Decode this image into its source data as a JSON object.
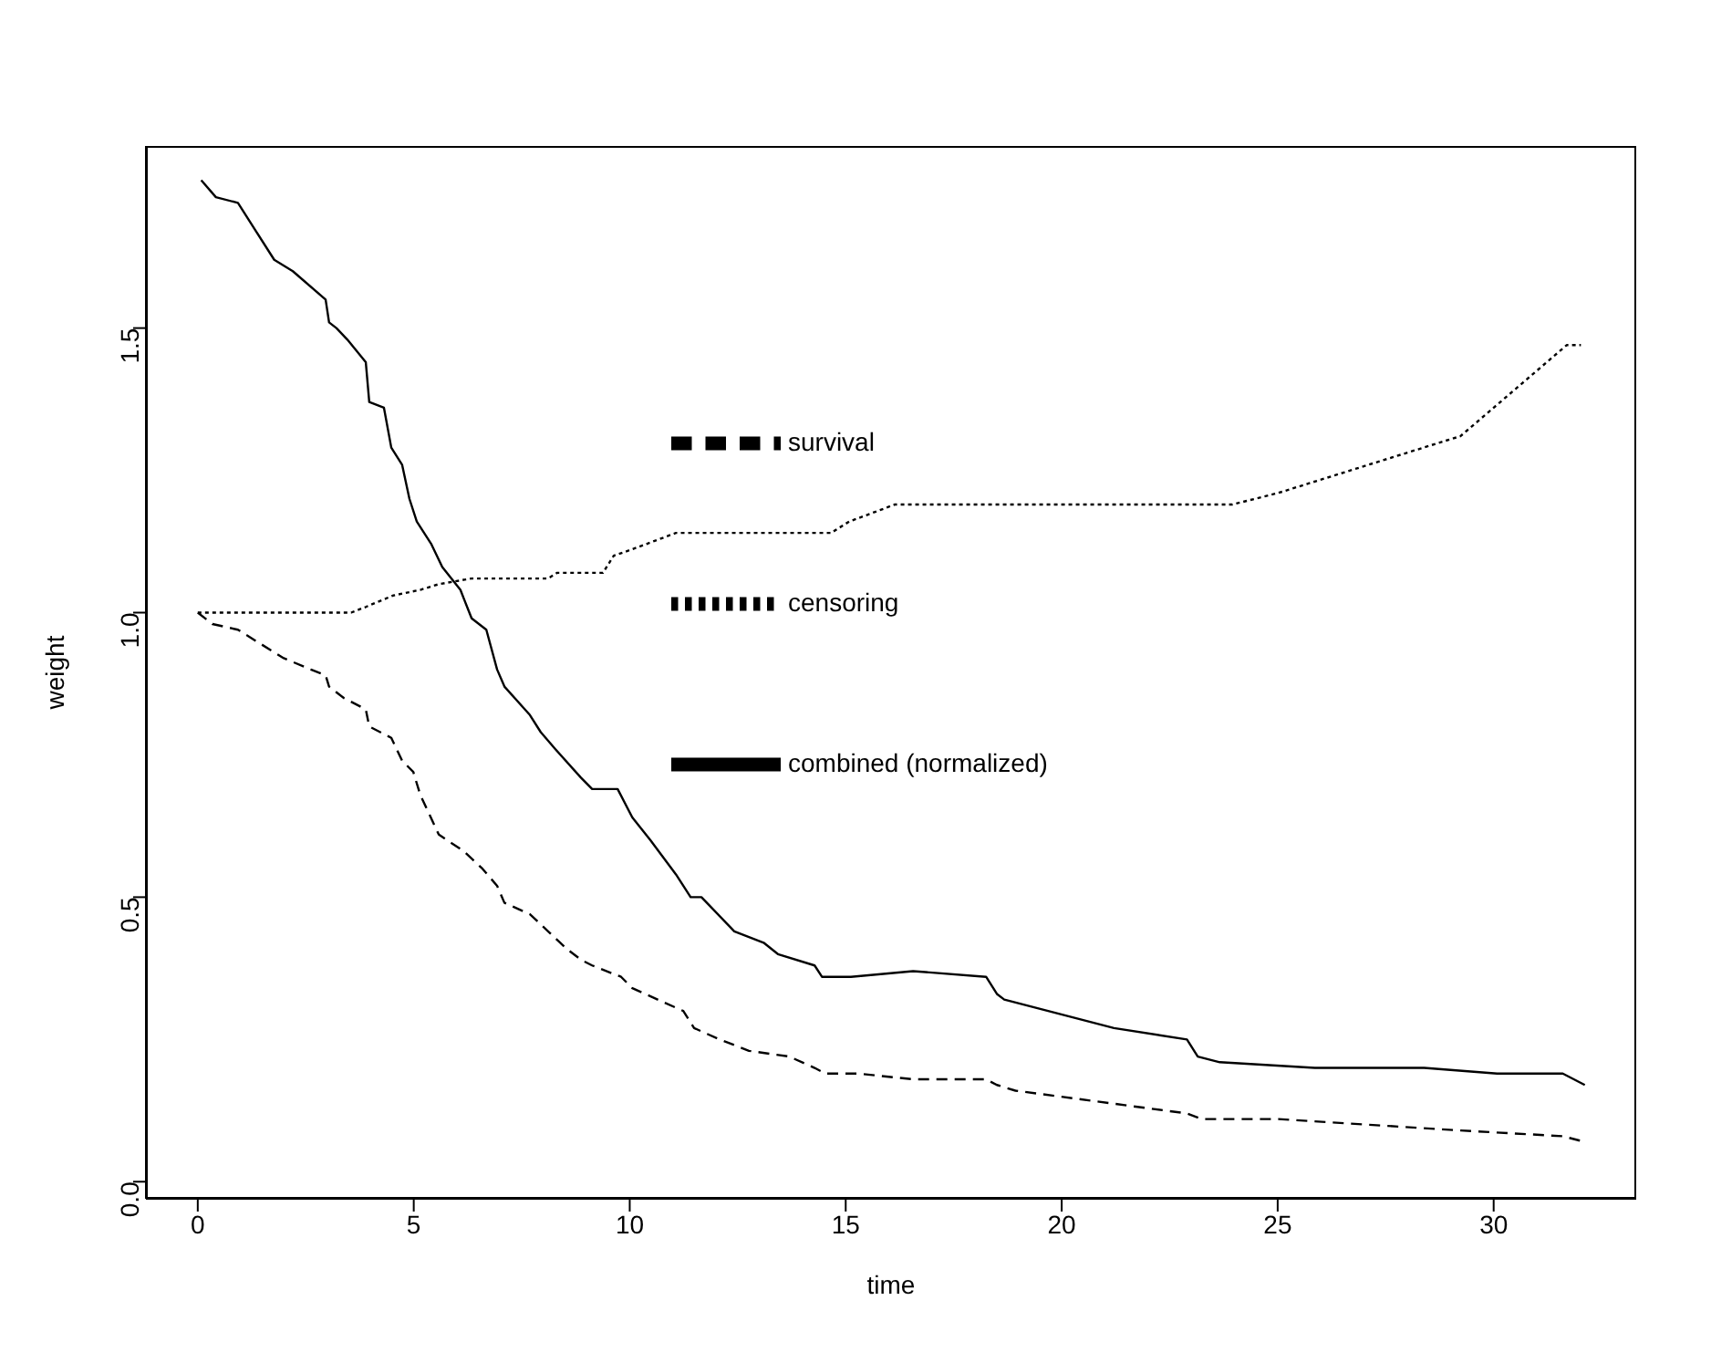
{
  "chart_data": {
    "type": "line",
    "xlabel": "time",
    "ylabel": "weight",
    "xlim": [
      -1.2,
      33.3
    ],
    "ylim": [
      -0.03,
      1.82
    ],
    "xticks": [
      0,
      5,
      10,
      15,
      20,
      25,
      30
    ],
    "yticks": [
      {
        "value": 0,
        "label": "0.0"
      },
      {
        "value": 0.5,
        "label": "0.5"
      },
      {
        "value": 1,
        "label": "1.0"
      },
      {
        "value": 1.5,
        "label": "1.5"
      }
    ],
    "grid": false,
    "legend": "right",
    "marker": "none",
    "series": [
      {
        "name": "survival",
        "color": "#000000",
        "line_style": "dashed",
        "x": [
          0,
          0.34,
          0.93,
          1.35,
          1.99,
          2.62,
          2.96,
          3.04,
          3.38,
          3.89,
          3.97,
          4.48,
          4.73,
          4.99,
          5.15,
          5.58,
          6.17,
          6.59,
          6.93,
          7.1,
          7.69,
          8.11,
          8.53,
          8.87,
          9.13,
          9.8,
          10.06,
          11.24,
          11.49,
          12.08,
          12.76,
          13.69,
          14.28,
          14.53,
          15.29,
          16.56,
          18.25,
          18.5,
          18.93,
          22.9,
          23.24,
          25.02,
          29.24,
          31.6,
          32.11
        ],
        "values": [
          1.0,
          0.98,
          0.97,
          0.95,
          0.92,
          0.9,
          0.89,
          0.87,
          0.85,
          0.83,
          0.8,
          0.78,
          0.74,
          0.72,
          0.68,
          0.61,
          0.58,
          0.55,
          0.52,
          0.49,
          0.47,
          0.44,
          0.41,
          0.39,
          0.38,
          0.36,
          0.34,
          0.3,
          0.27,
          0.25,
          0.23,
          0.22,
          0.2,
          0.19,
          0.19,
          0.18,
          0.18,
          0.17,
          0.16,
          0.12,
          0.11,
          0.11,
          0.09,
          0.08,
          0.07
        ]
      },
      {
        "name": "censoring",
        "color": "#000000",
        "line_style": "dotted",
        "x": [
          0,
          3.55,
          3.89,
          4.52,
          5.15,
          5.58,
          6.34,
          8.11,
          8.32,
          9.38,
          9.63,
          10.01,
          11.07,
          14.66,
          15.08,
          16.14,
          23.95,
          25.0,
          28.8,
          29.23,
          31.69,
          32.02
        ],
        "values": [
          1.0,
          1.0,
          1.01,
          1.03,
          1.04,
          1.05,
          1.06,
          1.06,
          1.07,
          1.07,
          1.1,
          1.11,
          1.14,
          1.14,
          1.16,
          1.19,
          1.19,
          1.21,
          1.3,
          1.31,
          1.47,
          1.47
        ]
      },
      {
        "name": "combined (normalized)",
        "color": "#000000",
        "line_style": "solid",
        "x": [
          0.08,
          0.42,
          0.93,
          1.35,
          1.77,
          2.2,
          2.96,
          3.04,
          3.21,
          3.46,
          3.89,
          3.97,
          4.31,
          4.48,
          4.73,
          4.9,
          5.07,
          5.41,
          5.66,
          6.08,
          6.34,
          6.68,
          6.93,
          7.1,
          7.69,
          7.94,
          8.28,
          8.87,
          9.13,
          9.72,
          10.06,
          10.48,
          11.07,
          11.41,
          11.66,
          12.42,
          13.1,
          13.43,
          14.28,
          14.45,
          15.12,
          16.56,
          18.25,
          18.5,
          18.67,
          21.21,
          22.9,
          23.15,
          23.66,
          25.86,
          28.39,
          30.08,
          31.6,
          32.11
        ],
        "values": [
          1.76,
          1.73,
          1.72,
          1.67,
          1.62,
          1.6,
          1.55,
          1.51,
          1.5,
          1.48,
          1.44,
          1.37,
          1.36,
          1.29,
          1.26,
          1.2,
          1.16,
          1.12,
          1.08,
          1.04,
          0.99,
          0.97,
          0.9,
          0.87,
          0.82,
          0.79,
          0.76,
          0.71,
          0.69,
          0.69,
          0.64,
          0.6,
          0.54,
          0.5,
          0.5,
          0.44,
          0.42,
          0.4,
          0.38,
          0.36,
          0.36,
          0.37,
          0.36,
          0.33,
          0.32,
          0.27,
          0.25,
          0.22,
          0.21,
          0.2,
          0.2,
          0.19,
          0.19,
          0.17
        ]
      }
    ]
  }
}
